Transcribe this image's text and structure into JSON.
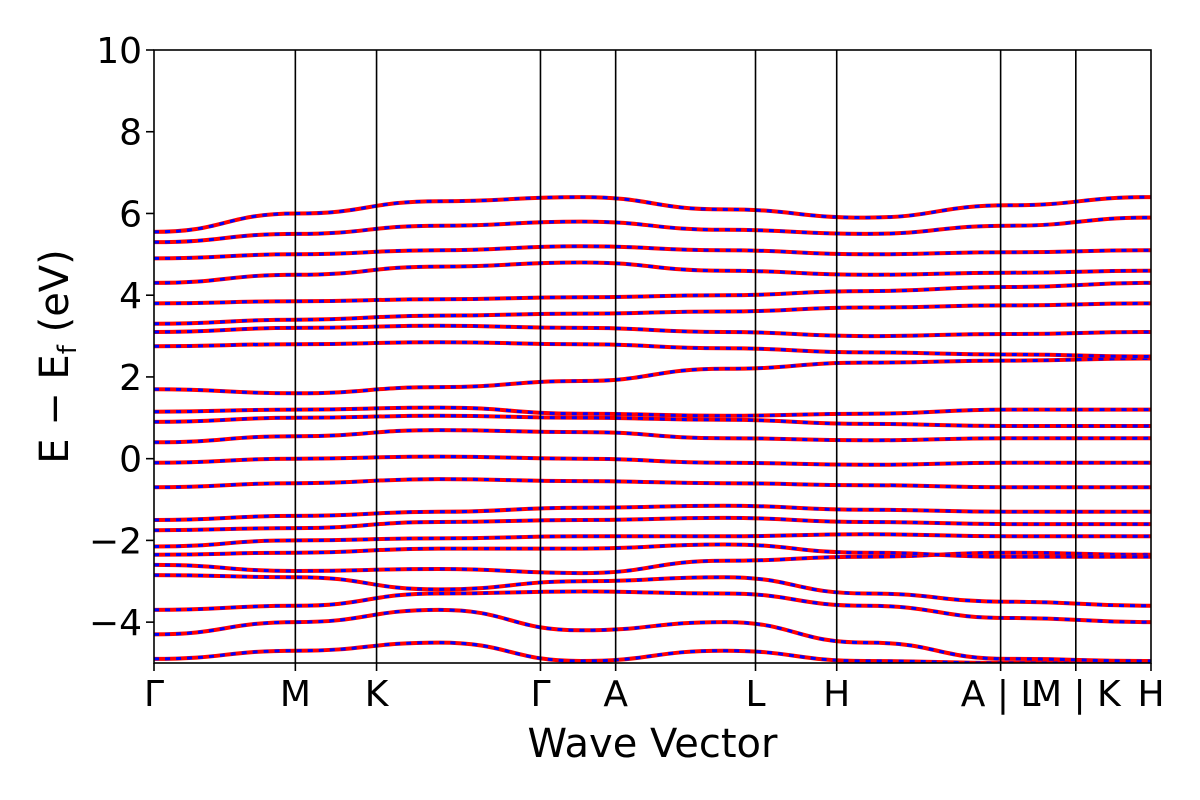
{
  "chart_data": {
    "type": "line",
    "title": "",
    "xlabel": "Wave Vector",
    "ylabel_parts": {
      "main": "E − E",
      "subscript": "f",
      "unit": " (eV)"
    },
    "ylim": [
      -5,
      10
    ],
    "yticks": [
      -4,
      -2,
      0,
      2,
      4,
      6,
      8,
      10
    ],
    "ytick_labels": [
      "−4",
      "−2",
      "0",
      "2",
      "4",
      "6",
      "8",
      "10"
    ],
    "kpath": {
      "positions": [
        0,
        0.94,
        1.48,
        2.57,
        3.07,
        4.0,
        4.54,
        5.63,
        6.13,
        6.63
      ],
      "labels": [
        "Γ",
        "M",
        "K",
        "Γ",
        "A",
        "L",
        "H",
        "A | L",
        "M | K",
        "H"
      ],
      "segment_breaks": [
        5.63,
        6.13
      ]
    },
    "line_styles": {
      "solid_color": "#ff0000",
      "dashed_color": "#0000ff"
    },
    "bands": [
      [
        -4.9,
        -4.7,
        -4.5,
        -4.95,
        -4.7,
        -4.95,
        -5.0,
        -5.0
      ],
      [
        -4.3,
        -4.0,
        -3.7,
        -4.2,
        -4.0,
        -4.5,
        -4.9,
        -4.95
      ],
      [
        -3.7,
        -3.6,
        -3.3,
        -3.25,
        -3.3,
        -3.6,
        -3.9,
        -4.0
      ],
      [
        -2.85,
        -2.9,
        -3.2,
        -3.0,
        -2.9,
        -3.3,
        -3.5,
        -3.6
      ],
      [
        -2.6,
        -2.75,
        -2.7,
        -2.8,
        -2.5,
        -2.4,
        -2.3,
        -2.35
      ],
      [
        -2.35,
        -2.3,
        -2.2,
        -2.2,
        -2.1,
        -2.3,
        -2.4,
        -2.4
      ],
      [
        -2.15,
        -2.0,
        -1.95,
        -1.9,
        -1.9,
        -1.85,
        -1.9,
        -1.9
      ],
      [
        -1.75,
        -1.7,
        -1.55,
        -1.5,
        -1.45,
        -1.55,
        -1.6,
        -1.6
      ],
      [
        -1.5,
        -1.4,
        -1.3,
        -1.2,
        -1.15,
        -1.25,
        -1.3,
        -1.3
      ],
      [
        -0.7,
        -0.6,
        -0.5,
        -0.55,
        -0.6,
        -0.65,
        -0.7,
        -0.7
      ],
      [
        -0.1,
        0.0,
        0.05,
        0.0,
        -0.1,
        -0.15,
        -0.1,
        -0.1
      ],
      [
        0.4,
        0.55,
        0.7,
        0.65,
        0.5,
        0.45,
        0.5,
        0.5
      ],
      [
        0.9,
        1.0,
        1.05,
        1.0,
        0.95,
        0.85,
        0.8,
        0.8
      ],
      [
        1.15,
        1.2,
        1.25,
        1.1,
        1.05,
        1.1,
        1.2,
        1.2
      ],
      [
        1.7,
        1.6,
        1.75,
        1.9,
        2.2,
        2.35,
        2.4,
        2.45
      ],
      [
        2.75,
        2.8,
        2.85,
        2.8,
        2.7,
        2.6,
        2.55,
        2.5
      ],
      [
        3.1,
        3.2,
        3.25,
        3.2,
        3.1,
        3.0,
        3.05,
        3.1
      ],
      [
        3.3,
        3.4,
        3.5,
        3.55,
        3.6,
        3.7,
        3.75,
        3.8
      ],
      [
        3.8,
        3.85,
        3.9,
        3.95,
        4.0,
        4.1,
        4.2,
        4.3
      ],
      [
        4.3,
        4.5,
        4.7,
        4.8,
        4.6,
        4.5,
        4.55,
        4.6
      ],
      [
        4.9,
        5.0,
        5.1,
        5.2,
        5.1,
        5.0,
        5.05,
        5.1
      ],
      [
        5.3,
        5.5,
        5.7,
        5.8,
        5.6,
        5.5,
        5.7,
        5.9
      ],
      [
        5.55,
        6.0,
        6.3,
        6.4,
        6.1,
        5.9,
        6.2,
        6.4
      ]
    ]
  }
}
